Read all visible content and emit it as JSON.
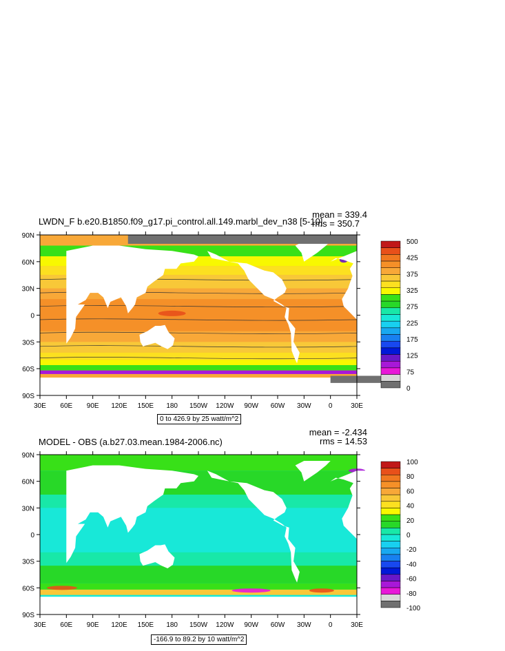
{
  "chart_data": [
    {
      "type": "heatmap",
      "title": "LWDN_F b.e20.B1850.f09_g17.pi_control.all.149.marbl_dev_n38 [5-10]",
      "stats": {
        "mean": "mean = 339.4",
        "rms": "rms = 350.7"
      },
      "subtitle": "0 to 426.9 by 25 watt/m^2",
      "lat_ticks": [
        "90N",
        "60N",
        "30N",
        "0",
        "30S",
        "60S",
        "90S"
      ],
      "lon_ticks": [
        "30E",
        "60E",
        "90E",
        "120E",
        "150E",
        "180",
        "150W",
        "120W",
        "90W",
        "60W",
        "30W",
        "0",
        "30E"
      ],
      "colorbar_labels": [
        "500",
        "425",
        "375",
        "325",
        "275",
        "225",
        "175",
        "125",
        "75",
        "0"
      ],
      "colorbar_colors": [
        "#c01818",
        "#e8501a",
        "#f07820",
        "#f59028",
        "#f8a838",
        "#f8c838",
        "#fce020",
        "#f8f800",
        "#38e018",
        "#28d828",
        "#18e8a8",
        "#18e8d8",
        "#18d0f0",
        "#18a8f0",
        "#1880f0",
        "#1848f0",
        "#0018d8",
        "#6818c8",
        "#a818d8",
        "#e818d8",
        "#d8d8d8",
        "#707070"
      ]
    },
    {
      "type": "heatmap",
      "title": "MODEL - OBS (a.b27.03.mean.1984-2006.nc)",
      "stats": {
        "mean": "mean = -2.434",
        "rms": "rms = 14.53"
      },
      "subtitle": "-166.9 to 89.2 by 10 watt/m^2",
      "lat_ticks": [
        "90N",
        "60N",
        "30N",
        "0",
        "30S",
        "60S",
        "90S"
      ],
      "lon_ticks": [
        "30E",
        "60E",
        "90E",
        "120E",
        "150E",
        "180",
        "150W",
        "120W",
        "90W",
        "60W",
        "30W",
        "0",
        "30E"
      ],
      "colorbar_labels": [
        "100",
        "80",
        "60",
        "40",
        "20",
        "0",
        "-20",
        "-40",
        "-60",
        "-80",
        "-100"
      ],
      "colorbar_colors": [
        "#c01818",
        "#e8501a",
        "#f07820",
        "#f59028",
        "#f8a838",
        "#f8c838",
        "#fce020",
        "#f8f800",
        "#38e018",
        "#28d828",
        "#18e8a8",
        "#18e8d8",
        "#18d0f0",
        "#18a8f0",
        "#1880f0",
        "#1848f0",
        "#0018d8",
        "#6818c8",
        "#a818d8",
        "#e818d8",
        "#d8d8d8",
        "#707070"
      ]
    }
  ]
}
